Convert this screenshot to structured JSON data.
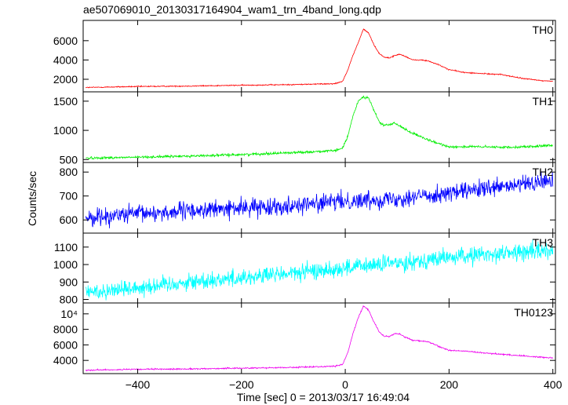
{
  "title": "ae507069010_20130317164904_wam1_trn_4band_long.qdp",
  "xlabel": "Time [sec] 0 = 2013/03/17 16:49:04",
  "ylabel": "Counts/sec",
  "chart_data": {
    "type": "line",
    "title": "ae507069010_20130317164904_wam1_trn_4band_long.qdp",
    "xlabel": "Time [sec] 0 = 2013/03/17 16:49:04",
    "ylabel": "Counts/sec",
    "xlim": [
      -505,
      405
    ],
    "x_ticks": [
      -400,
      -200,
      0,
      200,
      400
    ],
    "x_tick_labels": [
      "−400",
      "−200",
      "0",
      "200",
      "400"
    ],
    "grid": false,
    "legend": "none",
    "panels": [
      {
        "name": "TH0",
        "color": "#ff0000",
        "ylim": [
          700,
          8100
        ],
        "y_ticks": [
          2000,
          4000,
          6000
        ],
        "y_tick_labels": [
          "2000",
          "4000",
          "6000"
        ],
        "noise": 40,
        "x": [
          -500,
          -400,
          -300,
          -200,
          -100,
          -20,
          -5,
          5,
          15,
          25,
          35,
          45,
          55,
          65,
          75,
          85,
          95,
          105,
          115,
          130,
          145,
          160,
          180,
          200,
          230,
          260,
          300,
          340,
          380,
          400
        ],
        "values": [
          1150,
          1250,
          1300,
          1380,
          1450,
          1550,
          1800,
          3000,
          4500,
          5800,
          7200,
          6800,
          5600,
          4700,
          4300,
          4200,
          4450,
          4600,
          4400,
          4000,
          4000,
          3900,
          3500,
          3000,
          2700,
          2600,
          2500,
          2100,
          1850,
          1800
        ]
      },
      {
        "name": "TH1",
        "color": "#00ee00",
        "ylim": [
          450,
          1660
        ],
        "y_ticks": [
          500,
          1000,
          1500
        ],
        "y_tick_labels": [
          "500",
          "1000",
          "1500"
        ],
        "noise": 15,
        "x": [
          -500,
          -400,
          -300,
          -200,
          -100,
          -20,
          -5,
          5,
          15,
          25,
          35,
          45,
          55,
          65,
          75,
          85,
          95,
          105,
          115,
          130,
          150,
          170,
          200,
          250,
          300,
          350,
          400
        ],
        "values": [
          525,
          540,
          560,
          585,
          620,
          650,
          700,
          900,
          1250,
          1500,
          1580,
          1550,
          1350,
          1150,
          1080,
          1100,
          1120,
          1080,
          1020,
          950,
          870,
          800,
          720,
          720,
          710,
          720,
          740
        ]
      },
      {
        "name": "TH2",
        "color": "#0000ff",
        "ylim": [
          545,
          840
        ],
        "y_ticks": [
          600,
          700,
          800
        ],
        "y_tick_labels": [
          "600",
          "700",
          "800"
        ],
        "noise": 26,
        "x": [
          -500,
          -400,
          -300,
          -200,
          -100,
          0,
          100,
          200,
          300,
          400
        ],
        "values": [
          610,
          625,
          638,
          650,
          662,
          678,
          690,
          712,
          735,
          765
        ]
      },
      {
        "name": "TH3",
        "color": "#00ffff",
        "ylim": [
          780,
          1180
        ],
        "y_ticks": [
          800,
          900,
          1000,
          1100
        ],
        "y_tick_labels": [
          "800",
          "900",
          "1000",
          "1100"
        ],
        "noise": 35,
        "x": [
          -500,
          -400,
          -300,
          -200,
          -100,
          0,
          100,
          200,
          300,
          400
        ],
        "values": [
          840,
          870,
          900,
          925,
          950,
          980,
          1010,
          1040,
          1065,
          1080
        ]
      },
      {
        "name": "TH0123",
        "color": "#ee00ee",
        "ylim": [
          2300,
          11400
        ],
        "y_ticks": [
          4000,
          6000,
          8000,
          10000
        ],
        "y_tick_labels": [
          "4000",
          "6000",
          "8000",
          "10⁴"
        ],
        "noise": 60,
        "x": [
          -500,
          -400,
          -300,
          -200,
          -100,
          -20,
          -5,
          5,
          15,
          25,
          35,
          45,
          55,
          65,
          75,
          85,
          95,
          105,
          115,
          130,
          145,
          160,
          180,
          200,
          230,
          260,
          300,
          340,
          380,
          400
        ],
        "values": [
          2750,
          2850,
          2900,
          3000,
          3100,
          3250,
          3500,
          5000,
          7500,
          9500,
          11000,
          10500,
          9000,
          7700,
          7100,
          7100,
          7450,
          7400,
          7000,
          6600,
          6500,
          6400,
          5800,
          5300,
          5200,
          5000,
          4800,
          4600,
          4400,
          4350
        ]
      }
    ]
  }
}
